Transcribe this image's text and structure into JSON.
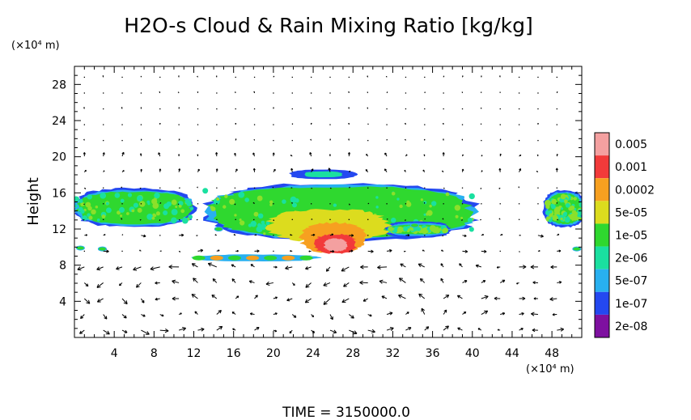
{
  "chart_data": {
    "type": "heatmap",
    "title": "H2O-s Cloud & Rain Mixing Ratio [kg/kg]",
    "ylabel": "Height",
    "y_unit": "(×10⁴ m)",
    "x_unit": "(×10⁴ m)",
    "xlim": [
      0,
      51
    ],
    "ylim": [
      0,
      30
    ],
    "xticks": [
      4,
      8,
      12,
      16,
      20,
      24,
      28,
      32,
      36,
      40,
      44,
      48
    ],
    "yticks": [
      4,
      8,
      12,
      16,
      20,
      24,
      28
    ],
    "x_minor_step": 1,
    "y_minor_step": 1,
    "footer": "TIME = 3150000.0",
    "colorbar": {
      "labels": [
        "0.005",
        "0.001",
        "0.0002",
        "5e-05",
        "1e-05",
        "2e-06",
        "5e-07",
        "1e-07",
        "2e-08"
      ],
      "colors": [
        "#f4a0a0",
        "#f23a3a",
        "#f7a020",
        "#dcdc1e",
        "#2fd82f",
        "#1ae0a0",
        "#28b0f0",
        "#2448f0",
        "#7e10a0"
      ]
    },
    "cloud_regions": [
      {
        "level": "1e-05",
        "x": [
          0,
          12
        ],
        "y": [
          12.5,
          16.2
        ]
      },
      {
        "level": "1e-05",
        "x": [
          13,
          40.5
        ],
        "y": [
          11,
          16.8
        ]
      },
      {
        "level": "1e-05",
        "x": [
          47.5,
          51
        ],
        "y": [
          12.5,
          16
        ]
      },
      {
        "level": "5e-05",
        "x": [
          19,
          32
        ],
        "y": [
          10.5,
          14.3
        ]
      },
      {
        "level": "0.0002",
        "x": [
          22.5,
          29.5
        ],
        "y": [
          9.3,
          12.8
        ]
      },
      {
        "level": "0.001",
        "x": [
          24,
          28.5
        ],
        "y": [
          9.2,
          11.5
        ]
      },
      {
        "level": "0.005",
        "x": [
          25,
          27.5
        ],
        "y": [
          9.5,
          11
        ]
      },
      {
        "level": "5e-07",
        "x": [
          21.5,
          28.5
        ],
        "y": [
          17.5,
          18.6
        ]
      },
      {
        "level": "5e-06",
        "x": [
          11.5,
          25
        ],
        "y": [
          8.4,
          9.2
        ]
      },
      {
        "level": "1e-05",
        "x": [
          31.5,
          37.5
        ],
        "y": [
          11.4,
          12.5
        ]
      }
    ],
    "circulation_cells": [
      {
        "x": 9.5,
        "y": 4
      },
      {
        "x": 30.5,
        "y": 4
      }
    ]
  }
}
